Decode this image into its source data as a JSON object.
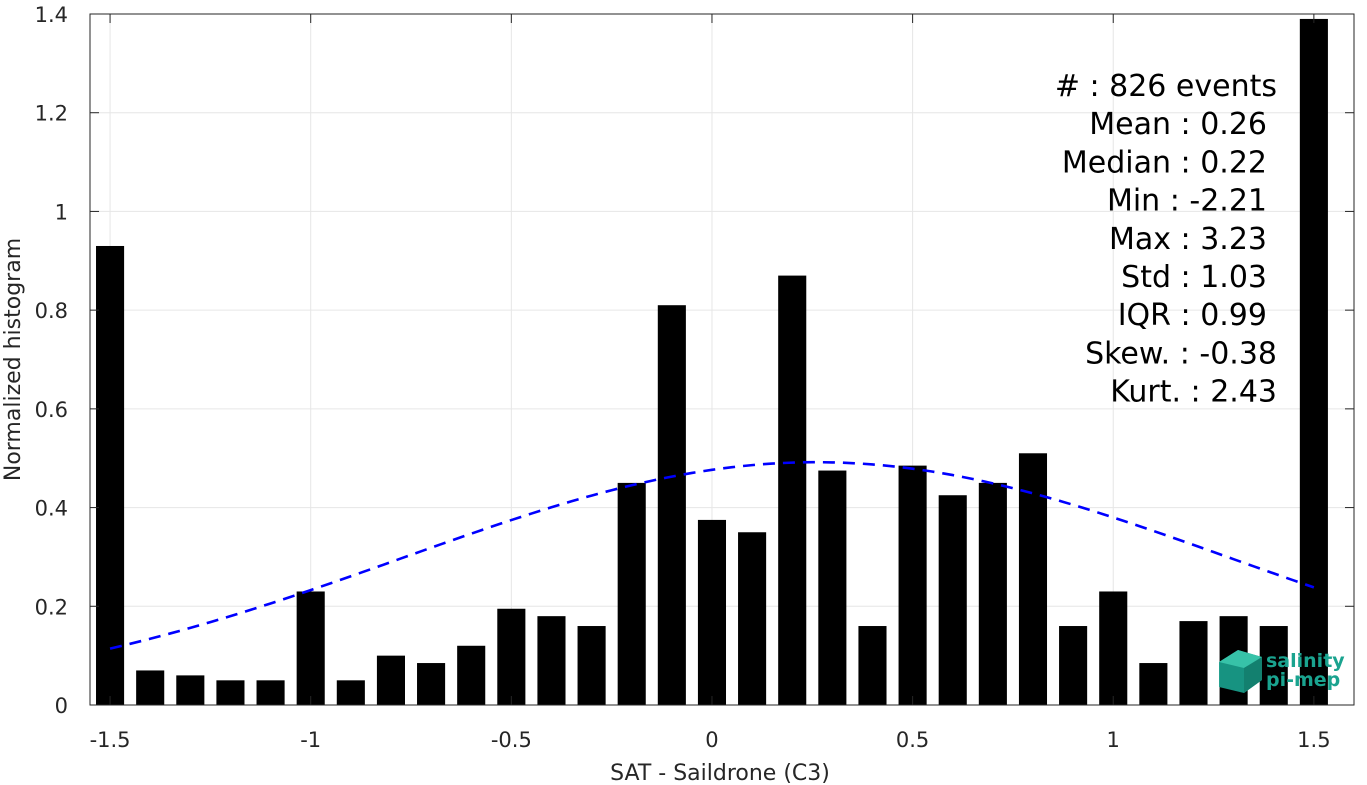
{
  "chart_data": {
    "type": "bar",
    "xlabel": "SAT - Saildrone (C3)",
    "ylabel": "Normalized histogram",
    "xlim": [
      -1.55,
      1.6
    ],
    "ylim": [
      0,
      1.4
    ],
    "grid": true,
    "xticks": [
      -1.5,
      -1,
      -0.5,
      0,
      0.5,
      1,
      1.5
    ],
    "xtick_labels": [
      "-1.5",
      "-1",
      "-0.5",
      "0",
      "0.5",
      "1",
      "1.5"
    ],
    "yticks": [
      0,
      0.2,
      0.4,
      0.6,
      0.8,
      1,
      1.2,
      1.4
    ],
    "ytick_labels": [
      "0",
      "0.2",
      "0.4",
      "0.6",
      "0.8",
      "1",
      "1.2",
      "1.4"
    ],
    "bin_width": 0.1,
    "bar_color": "#000000",
    "fit_color": "#0000ff",
    "bins": [
      {
        "x": -1.5,
        "y": 0.93
      },
      {
        "x": -1.4,
        "y": 0.07
      },
      {
        "x": -1.3,
        "y": 0.06
      },
      {
        "x": -1.2,
        "y": 0.05
      },
      {
        "x": -1.1,
        "y": 0.05
      },
      {
        "x": -1.0,
        "y": 0.23
      },
      {
        "x": -0.9,
        "y": 0.05
      },
      {
        "x": -0.8,
        "y": 0.1
      },
      {
        "x": -0.7,
        "y": 0.085
      },
      {
        "x": -0.6,
        "y": 0.12
      },
      {
        "x": -0.5,
        "y": 0.195
      },
      {
        "x": -0.4,
        "y": 0.18
      },
      {
        "x": -0.3,
        "y": 0.16
      },
      {
        "x": -0.2,
        "y": 0.45
      },
      {
        "x": -0.1,
        "y": 0.81
      },
      {
        "x": 0.0,
        "y": 0.375
      },
      {
        "x": 0.1,
        "y": 0.35
      },
      {
        "x": 0.2,
        "y": 0.87
      },
      {
        "x": 0.3,
        "y": 0.475
      },
      {
        "x": 0.4,
        "y": 0.16
      },
      {
        "x": 0.5,
        "y": 0.485
      },
      {
        "x": 0.6,
        "y": 0.425
      },
      {
        "x": 0.7,
        "y": 0.45
      },
      {
        "x": 0.8,
        "y": 0.51
      },
      {
        "x": 0.9,
        "y": 0.16
      },
      {
        "x": 1.0,
        "y": 0.23
      },
      {
        "x": 1.1,
        "y": 0.085
      },
      {
        "x": 1.2,
        "y": 0.17
      },
      {
        "x": 1.3,
        "y": 0.18
      },
      {
        "x": 1.4,
        "y": 0.16
      },
      {
        "x": 1.5,
        "y": 1.39
      }
    ],
    "fit": {
      "type": "normal",
      "mean": 0.26,
      "std": 1.03,
      "x_range": [
        -1.5,
        1.5
      ]
    },
    "stats": [
      "#  : 826 events",
      "Mean : 0.26",
      "Median : 0.22",
      "Min : -2.21",
      "Max : 3.23",
      "Std : 1.03",
      "IQR : 0.99",
      "Skew. : -0.38",
      "Kurt. : 2.43"
    ]
  },
  "logo": {
    "line1": "salinity",
    "line2": "pi-mep"
  }
}
